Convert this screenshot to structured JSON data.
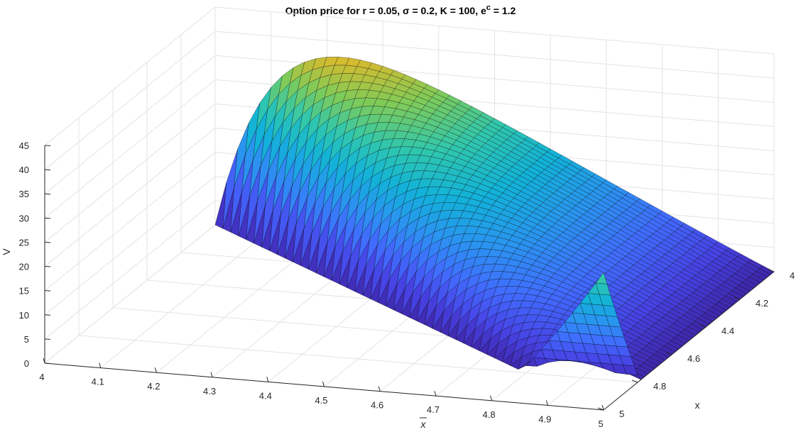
{
  "chart_data": {
    "type": "surface",
    "title": "Option price for r = 0.05, σ = 0.2, K = 100, e",
    "title_sup": "c",
    "title_tail": " = 1.2",
    "xlabel_overline": "x",
    "ylabel": "x",
    "zlabel": "V",
    "xbar_range": [
      4,
      5
    ],
    "x_range": [
      4,
      5
    ],
    "z_range": [
      0,
      45
    ],
    "xbar_ticks": [
      "4",
      "4.1",
      "4.2",
      "4.3",
      "4.4",
      "4.5",
      "4.6",
      "4.7",
      "4.8",
      "4.9",
      "5"
    ],
    "x_ticks": [
      "4",
      "4.2",
      "4.4",
      "4.6",
      "4.8",
      "5"
    ],
    "z_ticks": [
      "0",
      "5",
      "10",
      "15",
      "20",
      "25",
      "30",
      "35",
      "40",
      "45"
    ],
    "surface_domain": "x <= xbar",
    "grid": true,
    "colormap": "parula",
    "colors": {
      "low": "#3e26a8",
      "mid": "#2fbeb3",
      "high": "#f9fb0e"
    }
  }
}
